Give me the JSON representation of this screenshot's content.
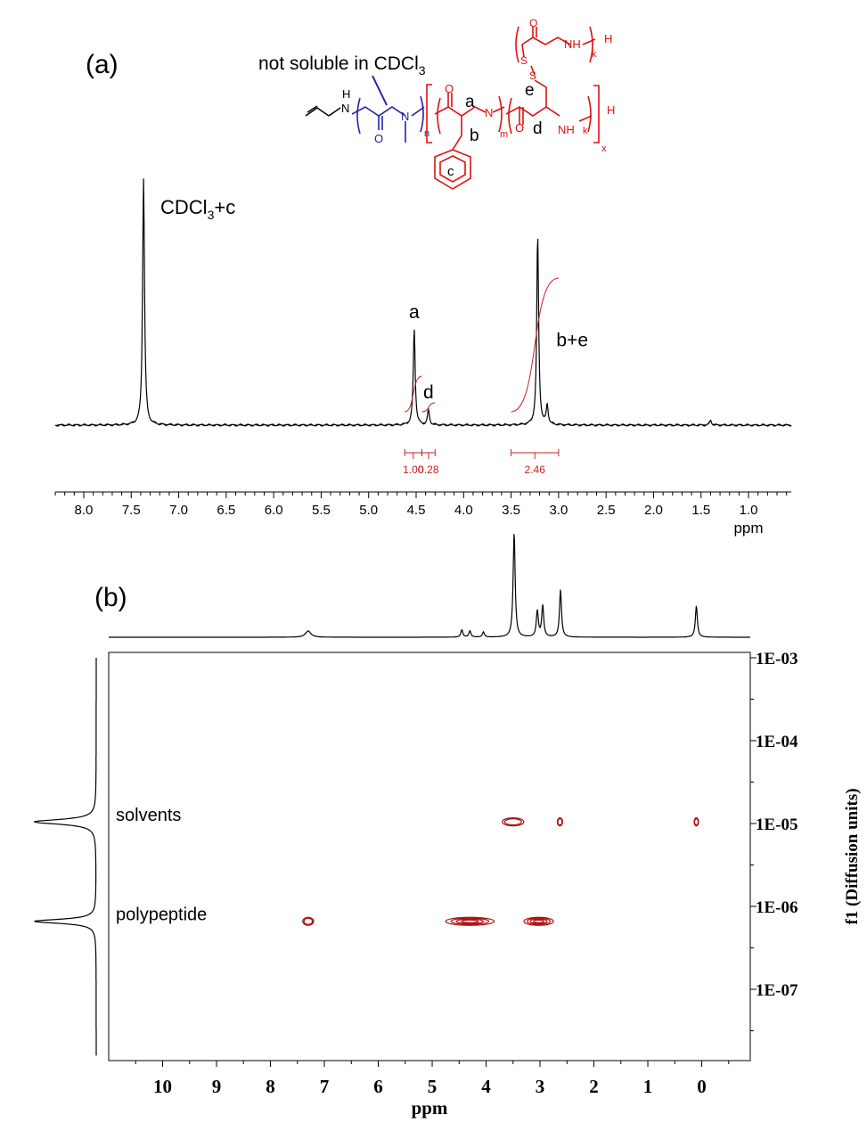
{
  "figure": {
    "panel_a_label": "(a)",
    "panel_b_label": "(b)",
    "note_text": "not soluble in CDCl",
    "note_sub": "3",
    "solvent_peak_main": "CDCl",
    "solvent_peak_sub": "3",
    "solvent_peak_suffix": "+c"
  },
  "structure": {
    "label_a": "a",
    "label_b": "b",
    "label_c": "c",
    "label_d": "d",
    "label_e": "e",
    "n_sub": "n",
    "m_sub": "m",
    "k_sub": "k",
    "x_sub": "x",
    "atom_N": "N",
    "atom_H": "H",
    "atom_O": "O",
    "atom_S": "S",
    "atom_NH": "NH",
    "color_peg": "#2222aa",
    "color_peptide": "#dd1111"
  },
  "chart_data": [
    {
      "type": "line",
      "xlabel": "ppm",
      "xlim": [
        8.3,
        0.55
      ],
      "x_ticks": [
        "8.0",
        "7.5",
        "7.0",
        "6.5",
        "6.0",
        "5.5",
        "5.0",
        "4.5",
        "4.0",
        "3.5",
        "3.0",
        "2.5",
        "2.0",
        "1.5",
        "1.0"
      ],
      "peak_labels": [
        {
          "text": "a",
          "ppm": 4.52
        },
        {
          "text": "d",
          "ppm": 4.37
        },
        {
          "text": "b+e",
          "ppm": 2.95
        }
      ],
      "peaks": [
        {
          "ppm": 7.37,
          "intensity": 1.0
        },
        {
          "ppm": 4.52,
          "intensity": 0.39
        },
        {
          "ppm": 4.37,
          "intensity": 0.06
        },
        {
          "ppm": 3.22,
          "intensity": 0.77
        },
        {
          "ppm": 3.12,
          "intensity": 0.08
        },
        {
          "ppm": 1.4,
          "intensity": 0.02
        }
      ],
      "integrals": [
        {
          "value": "1.00",
          "from": 4.62,
          "to": 4.44
        },
        {
          "value": "0.28",
          "from": 4.44,
          "to": 4.3
        },
        {
          "value": "2.46",
          "from": 3.5,
          "to": 3.0
        }
      ],
      "integral_color": "#cc2222"
    },
    {
      "type": "scatter",
      "subtype": "DOSY contour",
      "xlabel": "ppm",
      "ylabel": "f1 (Diffusion units)",
      "xlim": [
        11.0,
        -0.9
      ],
      "ylim_log": [
        -7.6,
        -3.0
      ],
      "x_ticks": [
        "10",
        "9",
        "8",
        "7",
        "6",
        "5",
        "4",
        "3",
        "2",
        "1",
        "0"
      ],
      "y_ticks": [
        "1E-03",
        "1E-04",
        "1E-05",
        "1E-06",
        "1E-07"
      ],
      "row_labels": [
        {
          "text": "solvents",
          "logD": -5.0
        },
        {
          "text": "polypeptide",
          "logD": -6.2
        }
      ],
      "top_projection_peaks": [
        {
          "ppm": 7.3,
          "intensity": 0.06
        },
        {
          "ppm": 4.45,
          "intensity": 0.07
        },
        {
          "ppm": 4.3,
          "intensity": 0.06
        },
        {
          "ppm": 4.05,
          "intensity": 0.05
        },
        {
          "ppm": 3.48,
          "intensity": 1.0
        },
        {
          "ppm": 3.05,
          "intensity": 0.25
        },
        {
          "ppm": 2.95,
          "intensity": 0.3
        },
        {
          "ppm": 2.62,
          "intensity": 0.45
        },
        {
          "ppm": 0.1,
          "intensity": 0.3
        }
      ],
      "contours": [
        {
          "ppm_from": 3.7,
          "ppm_to": 3.3,
          "logD": -4.98,
          "group": "solvents"
        },
        {
          "ppm_from": 2.68,
          "ppm_to": 2.58,
          "logD": -4.98,
          "group": "solvents"
        },
        {
          "ppm_from": 0.14,
          "ppm_to": 0.06,
          "logD": -4.98,
          "group": "solvents"
        },
        {
          "ppm_from": 7.4,
          "ppm_to": 7.2,
          "logD": -6.18,
          "group": "polypeptide"
        },
        {
          "ppm_from": 4.75,
          "ppm_to": 3.85,
          "logD": -6.18,
          "group": "polypeptide"
        },
        {
          "ppm_from": 3.3,
          "ppm_to": 2.75,
          "logD": -6.18,
          "group": "polypeptide"
        }
      ],
      "contour_color": "#aa1111"
    }
  ]
}
